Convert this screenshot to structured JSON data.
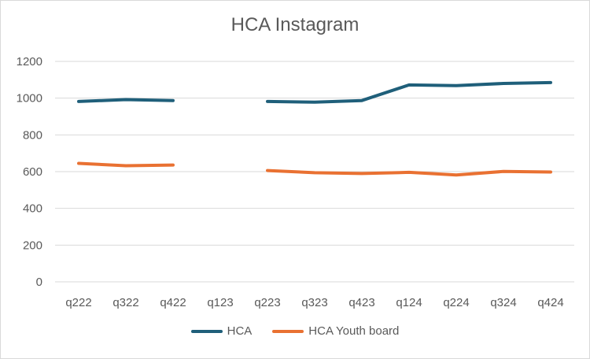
{
  "chart_data": {
    "type": "line",
    "title": "HCA Instagram",
    "xlabel": "",
    "ylabel": "",
    "categories": [
      "q222",
      "q322",
      "q422",
      "q123",
      "q223",
      "q323",
      "q423",
      "q124",
      "q224",
      "q324",
      "q424"
    ],
    "ylim": [
      0,
      1200
    ],
    "yticks": [
      0,
      200,
      400,
      600,
      800,
      1000,
      1200
    ],
    "grid": true,
    "legend_position": "bottom",
    "series": [
      {
        "name": "HCA",
        "color": "#1f5f7a",
        "values": [
          982,
          992,
          987,
          null,
          982,
          978,
          987,
          1072,
          1068,
          1080,
          1085
        ]
      },
      {
        "name": "HCA Youth board",
        "color": "#e97132",
        "values": [
          645,
          632,
          636,
          null,
          606,
          594,
          590,
          596,
          582,
          601,
          598
        ]
      }
    ]
  }
}
